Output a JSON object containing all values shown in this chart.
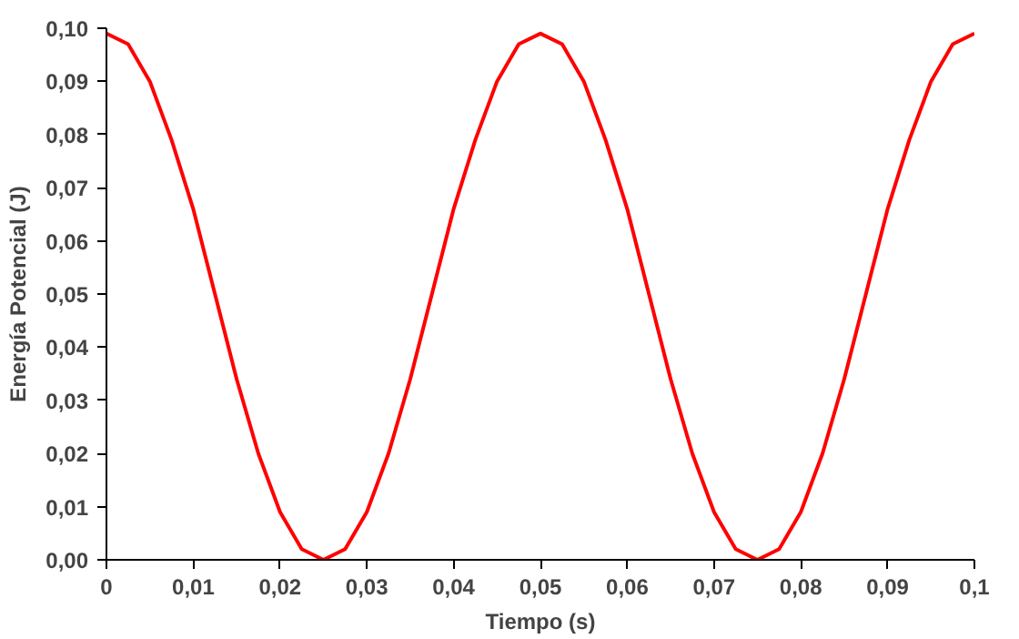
{
  "chart_data": {
    "type": "line",
    "xlabel": "Tiempo (s)",
    "ylabel": "Energía Potencial (J)",
    "x": [
      0,
      0.0025,
      0.005,
      0.0075,
      0.01,
      0.0125,
      0.015,
      0.0175,
      0.02,
      0.0225,
      0.025,
      0.0275,
      0.03,
      0.0325,
      0.035,
      0.0375,
      0.04,
      0.0425,
      0.045,
      0.0475,
      0.05,
      0.0525,
      0.055,
      0.0575,
      0.06,
      0.0625,
      0.065,
      0.0675,
      0.07,
      0.0725,
      0.075,
      0.0775,
      0.08,
      0.0825,
      0.085,
      0.0875,
      0.09,
      0.0925,
      0.095,
      0.0975,
      0.1
    ],
    "series": [
      {
        "color": "#ff0000",
        "values": [
          0.099,
          0.097,
          0.09,
          0.079,
          0.066,
          0.05,
          0.034,
          0.02,
          0.009,
          0.002,
          0.0,
          0.002,
          0.009,
          0.02,
          0.034,
          0.05,
          0.066,
          0.079,
          0.09,
          0.097,
          0.099,
          0.097,
          0.09,
          0.079,
          0.066,
          0.05,
          0.034,
          0.02,
          0.009,
          0.002,
          0.0,
          0.002,
          0.009,
          0.02,
          0.034,
          0.05,
          0.066,
          0.079,
          0.09,
          0.097,
          0.099
        ]
      }
    ],
    "xlim": [
      0,
      0.1
    ],
    "ylim": [
      0,
      0.1
    ],
    "xticks": [
      0,
      {
        "value": 0.01,
        "label": "0,01"
      },
      {
        "value": 0.02,
        "label": "0,02"
      },
      {
        "value": 0.03,
        "label": "0,03"
      },
      {
        "value": 0.04,
        "label": "0,04"
      },
      {
        "value": 0.05,
        "label": "0,05"
      },
      {
        "value": 0.06,
        "label": "0,06"
      },
      {
        "value": 0.07,
        "label": "0,07"
      },
      {
        "value": 0.08,
        "label": "0,08"
      },
      {
        "value": 0.09,
        "label": "0,09"
      },
      {
        "value": 0.1,
        "label": "0,1"
      }
    ],
    "yticks": [
      {
        "value": 0,
        "label": "0,00"
      },
      {
        "value": 0.01,
        "label": "0,01"
      },
      {
        "value": 0.02,
        "label": "0,02"
      },
      {
        "value": 0.03,
        "label": "0,03"
      },
      {
        "value": 0.04,
        "label": "0,04"
      },
      {
        "value": 0.05,
        "label": "0,05"
      },
      {
        "value": 0.06,
        "label": "0,06"
      },
      {
        "value": 0.07,
        "label": "0,07"
      },
      {
        "value": 0.08,
        "label": "0,08"
      },
      {
        "value": 0.09,
        "label": "0,09"
      },
      {
        "value": 0.1,
        "label": "0,10"
      }
    ],
    "grid": false,
    "marker": "none",
    "line_style": "solid"
  }
}
